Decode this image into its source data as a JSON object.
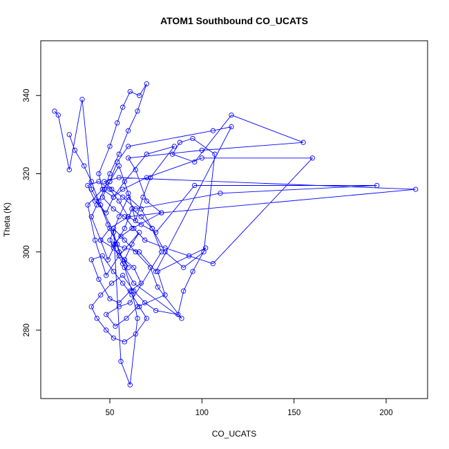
{
  "chart_data": {
    "type": "scatter",
    "title": "ATOM1 Southbound CO_UCATS",
    "xlabel": "CO_UCATS",
    "ylabel": "Theta (K)",
    "xlim": [
      12.5,
      222.5
    ],
    "ylim": [
      262.5,
      354.0
    ],
    "xticks": [
      50,
      100,
      150,
      200
    ],
    "yticks": [
      280,
      300,
      320,
      340
    ],
    "xtick_labels": [
      "50",
      "100",
      "150",
      "200"
    ],
    "ytick_labels": [
      "280",
      "300",
      "320",
      "340"
    ],
    "grid": false,
    "legend": "none",
    "marker": "open-circle",
    "connected": true,
    "color": "#0000ff",
    "series": [
      {
        "x": [
          20,
          22,
          28,
          35,
          40,
          45,
          52,
          55,
          60,
          58,
          62,
          66,
          55,
          48,
          42,
          38,
          50,
          55,
          60,
          64,
          68,
          72,
          85,
          70,
          58,
          52,
          46,
          44,
          50,
          54,
          57,
          61,
          66,
          70,
          65,
          60,
          55,
          50,
          47,
          43,
          40,
          45,
          49,
          53,
          58,
          62,
          67,
          73,
          80,
          90,
          101,
          107,
          95,
          88,
          84,
          96,
          116,
          155,
          100,
          60,
          64,
          70,
          78,
          62,
          56,
          52,
          58,
          66,
          75,
          116,
          106,
          60,
          54,
          50,
          46,
          52,
          58,
          63,
          69,
          80,
          93,
          106,
          160,
          100,
          70,
          57,
          52,
          48,
          42,
          38,
          44,
          50,
          55,
          60,
          67,
          75,
          96,
          195,
          110,
          64,
          57,
          51,
          47,
          55,
          216,
          78,
          60,
          50,
          45,
          52,
          58,
          63,
          67,
          61,
          55,
          50,
          44,
          40,
          46,
          52,
          57,
          62,
          66,
          70,
          64,
          58,
          52,
          48,
          43,
          40,
          45,
          51,
          57,
          63,
          69,
          75,
          87,
          90,
          95,
          102,
          76,
          80,
          65,
          59,
          53,
          48,
          55,
          61,
          78,
          73,
          67,
          60,
          55,
          50,
          57,
          63,
          89,
          76,
          72,
          64,
          58,
          52,
          56,
          61,
          65,
          62,
          58,
          54,
          49,
          44,
          40,
          36,
          31,
          28
        ],
        "y": [
          336,
          335,
          321,
          339,
          316,
          312,
          305,
          300,
          296,
          298,
          302,
          305,
          299,
          294,
          303,
          312,
          318,
          322,
          315,
          308,
          314,
          319,
          327,
          325,
          318,
          314,
          316,
          320,
          327,
          333,
          337,
          341,
          340,
          343,
          336,
          331,
          325,
          320,
          316,
          312,
          309,
          303,
          298,
          302,
          306,
          311,
          309,
          306,
          300,
          296,
          300,
          325,
          329,
          328,
          325,
          323,
          335,
          328,
          326,
          324,
          321,
          313,
          310,
          306,
          304,
          302,
          301,
          300,
          295,
          332,
          331,
          327,
          323,
          318,
          314,
          311,
          309,
          306,
          303,
          301,
          299,
          297,
          324,
          324,
          319,
          316,
          314,
          310,
          313,
          317,
          318,
          316,
          313,
          309,
          307,
          305,
          317,
          317,
          315,
          311,
          314,
          316,
          318,
          319,
          316,
          310,
          309,
          306,
          303,
          301,
          298,
          296,
          292,
          290,
          287,
          288,
          293,
          298,
          299,
          295,
          292,
          289,
          286,
          283,
          279,
          277,
          278,
          280,
          283,
          286,
          289,
          292,
          294,
          290,
          287,
          285,
          284,
          290,
          295,
          301,
          295,
          289,
          286,
          283,
          281,
          284,
          286,
          287,
          300,
          306,
          311,
          314,
          309,
          303,
          297,
          292,
          283,
          291,
          296,
          300,
          303,
          306,
          272,
          266,
          283,
          290,
          296,
          302,
          307,
          313,
          318,
          322,
          326,
          330
        ]
      }
    ]
  }
}
